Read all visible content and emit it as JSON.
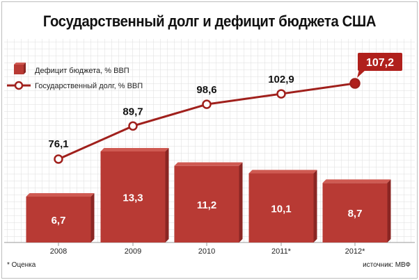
{
  "title": "Государственный долг и дефицит бюджета США",
  "footnote": "* Оценка",
  "source": "источник: МВФ",
  "colors": {
    "bar_fill": "#b83a34",
    "bar_dark": "#8a2623",
    "bar_light": "#cf5a52",
    "line": "#a0201c",
    "marker_fill": "#ffffff",
    "highlight": "#b0201c"
  },
  "chart_data": {
    "type": "bar",
    "categories": [
      "2008",
      "2009",
      "2010",
      "2011*",
      "2012*"
    ],
    "series": [
      {
        "name": "Дефицит бюджета, % ВВП",
        "type": "bar",
        "values": [
          6.7,
          13.3,
          11.2,
          10.1,
          8.7
        ],
        "labels": [
          "6,7",
          "13,3",
          "11,2",
          "10,1",
          "8,7"
        ]
      },
      {
        "name": "Государственный долг, % ВВП",
        "type": "line",
        "values": [
          76.1,
          89.7,
          98.6,
          102.9,
          107.2
        ],
        "labels": [
          "76,1",
          "89,7",
          "98,6",
          "102,9",
          "107,2"
        ]
      }
    ],
    "grid": true,
    "legend_position": "top-left"
  }
}
